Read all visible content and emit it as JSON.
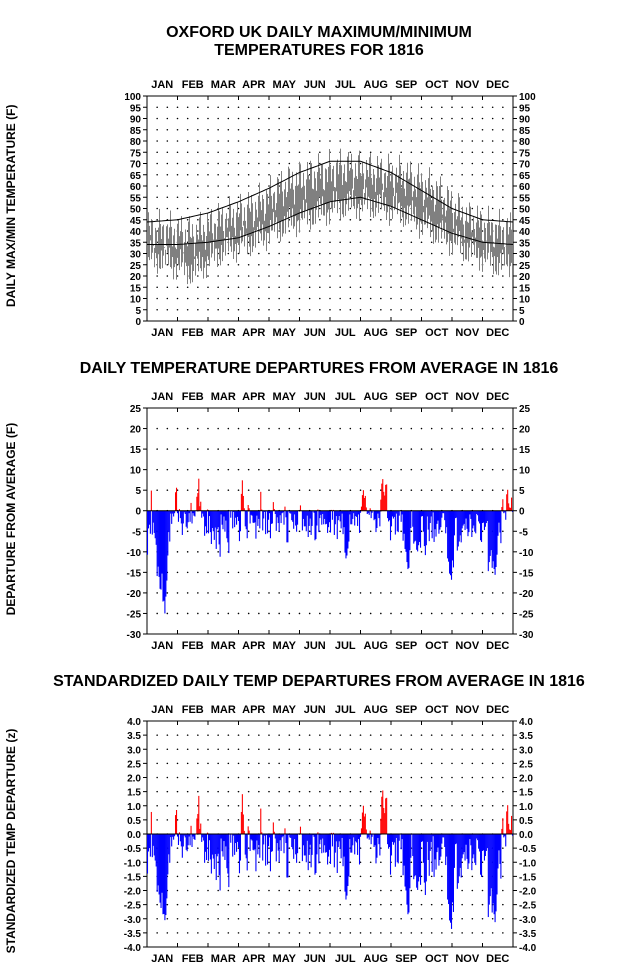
{
  "titles": {
    "chart1_line1": "OXFORD UK DAILY MAXIMUM/MINIMUM",
    "chart1_line2": "TEMPERATURES FOR 1816",
    "chart2": "DAILY TEMPERATURE DEPARTURES FROM AVERAGE IN 1816",
    "chart3": "STANDARDIZED DAILY TEMP DEPARTURES FROM AVERAGE IN 1816"
  },
  "chart_data": [
    {
      "type": "line",
      "title": "OXFORD UK DAILY MAXIMUM/MINIMUM TEMPERATURES FOR 1816",
      "ylabel": "DAILY MAX/MIN TEMPERATURE (F)",
      "months": [
        "JAN",
        "FEB",
        "MAR",
        "APR",
        "MAY",
        "JUN",
        "JUL",
        "AUG",
        "SEP",
        "OCT",
        "NOV",
        "DEC"
      ],
      "ylim": [
        0,
        100
      ],
      "yticks": [
        0,
        5,
        10,
        15,
        20,
        25,
        30,
        35,
        40,
        45,
        50,
        55,
        60,
        65,
        70,
        75,
        80,
        85,
        90,
        95,
        100
      ],
      "grid": true,
      "series": [
        {
          "role": "observed daily range",
          "color": "#808080",
          "x_month_mid": [
            0.5,
            1.5,
            2.5,
            3.5,
            4.5,
            5.5,
            6.5,
            7.5,
            8.5,
            9.5,
            10.5,
            11.5
          ],
          "max_values": [
            40,
            38,
            45,
            50,
            60,
            65,
            68,
            66,
            64,
            57,
            45,
            40
          ],
          "min_values": [
            28,
            22,
            32,
            36,
            43,
            48,
            52,
            52,
            48,
            40,
            32,
            26
          ]
        },
        {
          "role": "average daily maximum",
          "color": "#000000",
          "x": [
            0,
            1,
            2,
            3,
            4,
            5,
            6,
            7,
            8,
            9,
            10,
            11,
            12
          ],
          "values": [
            44,
            45,
            48,
            53,
            59,
            66,
            71,
            71,
            66,
            58,
            50,
            45,
            44
          ]
        },
        {
          "role": "average daily minimum",
          "color": "#000000",
          "x": [
            0,
            1,
            2,
            3,
            4,
            5,
            6,
            7,
            8,
            9,
            10,
            11,
            12
          ],
          "values": [
            34,
            34,
            35,
            37,
            42,
            48,
            53,
            55,
            51,
            45,
            39,
            35,
            34
          ]
        }
      ]
    },
    {
      "type": "bar",
      "title": "DAILY TEMPERATURE DEPARTURES FROM AVERAGE IN 1816",
      "ylabel": "DEPARTURE FROM AVERAGE (F)",
      "months": [
        "JAN",
        "FEB",
        "MAR",
        "APR",
        "MAY",
        "JUN",
        "JUL",
        "AUG",
        "SEP",
        "OCT",
        "NOV",
        "DEC"
      ],
      "ylim": [
        -30,
        25
      ],
      "yticks": [
        25,
        20,
        15,
        10,
        5,
        0,
        -5,
        -10,
        -15,
        -20,
        -25,
        -30
      ],
      "grid": true,
      "positive_color": "#ff0000",
      "negative_color": "#0000ff",
      "values": [
        -10.7,
        -4.3,
        -3.4,
        -5.6,
        4.9,
        -5.8,
        -2.9,
        -5.4,
        -6.7,
        -8.3,
        -15.9,
        -13.6,
        -16.1,
        -19.0,
        -19.2,
        -15.3,
        -22.1,
        -21.9,
        -25.0,
        -20.9,
        -17.0,
        -10.9,
        -5.2,
        -7.5,
        -0.7,
        -3.2,
        -0.7,
        -1.4,
        -0.6,
        4.5,
        5.6,
        -0.6,
        -2.7,
        0.4,
        -1.8,
        -3.1,
        -5.9,
        -3.1,
        -0.4,
        -0.8,
        -3.9,
        -4.3,
        -2.8,
        -0.6,
        -2.7,
        1.9,
        -3.1,
        -0.6,
        -1.2,
        -1.4,
        0.0,
        3.4,
        4.3,
        7.8,
        1.1,
        2.2,
        -1.7,
        -0.7,
        -1.4,
        -6.1,
        -3.8,
        -5.5,
        0.3,
        -5.5,
        -1.3,
        -5.2,
        -8.1,
        -4.2,
        -5.0,
        -7.1,
        -4.1,
        -9.3,
        -4.5,
        -4.0,
        -8.2,
        -11.2,
        -0.9,
        -3.4,
        -4.5,
        -1.4,
        -5.1,
        -2.4,
        -6.7,
        -7.7,
        -10.3,
        -0.1,
        -1.7,
        -0.1,
        -4.3,
        -0.3,
        -4.0,
        -1.7,
        -3.4,
        -1.5,
        -2.5,
        -7.4,
        -5.0,
        4.1,
        7.4,
        3.6,
        0.6,
        -3.8,
        -4.5,
        -6.7,
        1.4,
        0.6,
        -3.1,
        -1.0,
        -1.2,
        -2.9,
        -3.0,
        -2.8,
        -6.8,
        -1.2,
        -3.7,
        -2.0,
        -4.3,
        4.6,
        0.3,
        -4.8,
        -1.9,
        -0.3,
        -5.7,
        -0.2,
        -5.5,
        -2.2,
        -0.6,
        -6.7,
        -3.2,
        -3.1,
        2.1,
        0.4,
        -0.8,
        -4.9,
        -1.6,
        -3.0,
        -5.0,
        -1.1,
        -3.0,
        -0.6,
        -0.4,
        -3.4,
        1.0,
        -1.6,
        -7.7,
        -7.7,
        -0.2,
        -0.6,
        -0.7,
        -2.3,
        -2.7,
        -4.4,
        -0.9,
        -3.6,
        -5.1,
        -3.4,
        0.1,
        0.0,
        1.3,
        -0.1,
        -4.8,
        -2.0,
        -3.8,
        -3.8,
        -5.0,
        -1.2,
        -6.4,
        -3.7,
        -1.9,
        -5.9,
        -3.7,
        -0.2,
        -0.5,
        -7.2,
        -6.9,
        -3.6,
        0.3,
        -5.2,
        -1.8,
        -1.0,
        -3.4,
        -0.8,
        -3.3,
        -2.0,
        -3.3,
        -3.2,
        -5.4,
        -4.0,
        -2.8,
        -5.3,
        0.2,
        -2.2,
        0.2,
        -5.9,
        -3.3,
        -1.3,
        -6.9,
        -2.3,
        -1.3,
        -2.6,
        -4.3,
        -0.7,
        -5.7,
        -4.0,
        -10.2,
        -11.6,
        -10.9,
        -9.2,
        -7.5,
        -0.9,
        -3.3,
        -3.3,
        -2.0,
        -0.6,
        -3.6,
        -1.3,
        -1.5,
        -3.7,
        -0.9,
        -5.4,
        -0.5,
        1.0,
        3.8,
        5.0,
        3.1,
        3.6,
        0.8,
        -0.8,
        -0.6,
        -1.0,
        0.6,
        -1.8,
        -0.5,
        -0.1,
        -2.3,
        -2.0,
        -5.2,
        -4.2,
        -0.7,
        -1.8,
        -3.8,
        2.7,
        6.6,
        7.7,
        4.6,
        3.7,
        6.3,
        6.4,
        -1.8,
        -2.6,
        -2.3,
        -7.2,
        -3.8,
        -1.4,
        -1.9,
        -1.5,
        -5.8,
        -0.7,
        -5.0,
        -5.2,
        -1.2,
        0.0,
        -2.7,
        -0.9,
        -7.3,
        -5.6,
        -9.3,
        -10.0,
        -12.5,
        -14.2,
        -13.9,
        -9.6,
        -4.2,
        -0.1,
        -3.9,
        -8.0,
        -7.5,
        -7.3,
        -9.5,
        -9.9,
        -8.4,
        -7.6,
        -9.0,
        -1.4,
        -1.3,
        -5.1,
        -8.6,
        -10.8,
        -8.4,
        -1.4,
        -4.6,
        -7.4,
        -3.0,
        -1.4,
        -6.7,
        -0.4,
        -7.6,
        -4.5,
        -6.3,
        -3.2,
        -2.4,
        -5.6,
        -4.6,
        -4.0,
        -1.7,
        -0.6,
        -0.6,
        -2.3,
        -5.5,
        -4.0,
        -11.6,
        -12.4,
        -15.3,
        -15.7,
        -16.8,
        -12.1,
        -13.8,
        -6.0,
        -1.8,
        -1.7,
        -9.7,
        -8.7,
        -7.5,
        -6.0,
        -7.7,
        -4.3,
        -3.6,
        -3.2,
        -4.7,
        -1.9,
        -4.4,
        -6.2,
        -5.2,
        -0.9,
        -2.0,
        -6.4,
        -4.3,
        -3.6,
        -5.1,
        -5.5,
        -0.8,
        -1.1,
        -2.6,
        -3.1,
        -7.2,
        -7.6,
        -3.0,
        -2.9,
        -4.7,
        -3.9,
        -3.0,
        -2.5,
        -14.7,
        -12.5,
        -11.0,
        -9.6,
        -13.9,
        -12.3,
        -14.2,
        -15.6,
        -13.7,
        -10.7,
        -6.1,
        -2.9,
        -5.3,
        -7.9,
        0.9,
        2.8,
        -0.6,
        -0.4,
        -2.2,
        4.0,
        5.1,
        1.8,
        0.8,
        0.7,
        3.2,
        -0.3
      ]
    },
    {
      "type": "bar",
      "title": "STANDARDIZED DAILY TEMP DEPARTURES FROM AVERAGE IN 1816",
      "ylabel": "STANDARDIZED TEMP DEPARTURE (z)",
      "months": [
        "JAN",
        "FEB",
        "MAR",
        "APR",
        "MAY",
        "JUN",
        "JUL",
        "AUG",
        "SEP",
        "OCT",
        "NOV",
        "DEC"
      ],
      "ylim": [
        -4.0,
        4.0
      ],
      "yticks": [
        4.0,
        3.5,
        3.0,
        2.5,
        2.0,
        1.5,
        1.0,
        0.5,
        0.0,
        -0.5,
        -1.0,
        -1.5,
        -2.0,
        -2.5,
        -3.0,
        -3.5,
        -4.0
      ],
      "grid": true,
      "positive_color": "#ff0000",
      "negative_color": "#0000ff",
      "values": [
        -1.4,
        -0.62,
        -0.5,
        -0.8,
        0.78,
        -0.82,
        -0.42,
        -0.76,
        -0.94,
        -1.15,
        -2.05,
        -1.82,
        -2.14,
        -2.43,
        -2.62,
        -2.08,
        -2.84,
        -2.83,
        -3.05,
        -2.87,
        -2.28,
        -1.43,
        -0.72,
        -1.02,
        -0.11,
        -0.44,
        -0.1,
        -0.2,
        -0.08,
        0.67,
        0.85,
        -0.09,
        -0.39,
        0.06,
        -0.26,
        -0.44,
        -0.84,
        -0.44,
        -0.06,
        -0.12,
        -0.56,
        -0.61,
        -0.4,
        -0.09,
        -0.4,
        0.29,
        -0.46,
        -0.09,
        -0.18,
        -0.21,
        0.0,
        0.55,
        0.71,
        1.35,
        0.18,
        0.37,
        -0.28,
        -0.12,
        -0.23,
        -1.02,
        -0.63,
        -0.92,
        0.05,
        -0.95,
        -0.22,
        -0.9,
        -1.4,
        -0.73,
        -0.87,
        -1.24,
        -0.71,
        -1.63,
        -0.79,
        -0.7,
        -1.46,
        -2.0,
        -0.16,
        -0.61,
        -0.8,
        -0.25,
        -0.92,
        -0.44,
        -1.21,
        -1.4,
        -1.88,
        -0.02,
        -0.31,
        -0.02,
        -0.8,
        -0.06,
        -0.74,
        -0.32,
        -0.63,
        -0.28,
        -0.47,
        -1.39,
        -0.94,
        0.78,
        1.41,
        0.69,
        0.11,
        -0.73,
        -0.86,
        -1.29,
        0.27,
        0.12,
        -0.6,
        -0.19,
        -0.23,
        -0.56,
        -0.58,
        -0.54,
        -1.32,
        -0.23,
        -0.72,
        -0.39,
        -0.84,
        0.9,
        0.06,
        -0.94,
        -0.37,
        -0.06,
        -1.12,
        -0.04,
        -1.08,
        -0.43,
        -0.12,
        -1.32,
        -0.63,
        -0.61,
        0.41,
        0.08,
        -0.16,
        -0.97,
        -0.32,
        -0.59,
        -0.99,
        -0.22,
        -0.6,
        -0.12,
        -0.08,
        -0.68,
        0.2,
        -0.32,
        -1.54,
        -1.54,
        -0.04,
        -0.12,
        -0.14,
        -0.46,
        -0.54,
        -0.88,
        -0.18,
        -0.72,
        -1.02,
        -0.68,
        0.02,
        0.0,
        0.26,
        -0.02,
        -0.96,
        -0.4,
        -0.76,
        -0.76,
        -1.0,
        -0.24,
        -1.28,
        -0.74,
        -0.38,
        -1.18,
        -0.74,
        -0.04,
        -0.1,
        -1.44,
        -1.38,
        -0.72,
        0.06,
        -1.04,
        -0.36,
        -0.2,
        -0.68,
        -0.16,
        -0.66,
        -0.4,
        -0.66,
        -0.64,
        -1.08,
        -0.8,
        -0.56,
        -1.06,
        0.04,
        -0.44,
        0.04,
        -1.18,
        -0.66,
        -0.26,
        -1.38,
        -0.46,
        -0.26,
        -0.52,
        -0.86,
        -0.14,
        -1.14,
        -0.8,
        -2.04,
        -2.32,
        -2.18,
        -1.84,
        -1.5,
        -0.18,
        -0.66,
        -0.66,
        -0.4,
        -0.12,
        -0.72,
        -0.26,
        -0.3,
        -0.74,
        -0.18,
        -1.08,
        -0.1,
        0.2,
        0.76,
        1.0,
        0.62,
        0.72,
        0.16,
        -0.16,
        -0.12,
        -0.2,
        0.12,
        -0.36,
        -0.1,
        -0.02,
        -0.46,
        -0.4,
        -1.04,
        -0.84,
        -0.14,
        -0.36,
        -0.76,
        0.54,
        1.32,
        1.54,
        0.92,
        0.74,
        1.26,
        1.28,
        -0.36,
        -0.52,
        -0.46,
        -1.44,
        -0.76,
        -0.28,
        -0.38,
        -0.3,
        -1.16,
        -0.14,
        -1.0,
        -1.04,
        -0.24,
        0.0,
        -0.54,
        -0.18,
        -1.46,
        -1.12,
        -1.86,
        -2.0,
        -2.5,
        -2.84,
        -2.78,
        -1.92,
        -0.84,
        -0.02,
        -0.78,
        -1.6,
        -1.5,
        -1.46,
        -1.9,
        -1.98,
        -1.68,
        -1.52,
        -1.8,
        -0.28,
        -0.26,
        -1.02,
        -1.72,
        -2.16,
        -1.68,
        -0.28,
        -0.92,
        -1.48,
        -0.6,
        -0.28,
        -1.34,
        -0.08,
        -1.52,
        -0.9,
        -1.26,
        -0.64,
        -0.48,
        -1.12,
        -0.92,
        -0.8,
        -0.34,
        -0.12,
        -0.12,
        -0.46,
        -1.1,
        -0.8,
        -2.32,
        -2.48,
        -3.06,
        -3.14,
        -3.36,
        -2.42,
        -2.76,
        -1.2,
        -0.36,
        -0.34,
        -1.94,
        -1.74,
        -1.5,
        -1.2,
        -1.54,
        -0.86,
        -0.72,
        -0.64,
        -0.94,
        -0.38,
        -0.88,
        -1.24,
        -1.04,
        -0.18,
        -0.4,
        -1.28,
        -0.86,
        -0.72,
        -1.02,
        -1.1,
        -0.16,
        -0.22,
        -0.52,
        -0.62,
        -1.44,
        -1.52,
        -0.6,
        -0.58,
        -0.94,
        -0.78,
        -0.6,
        -0.5,
        -2.94,
        -2.5,
        -2.2,
        -1.92,
        -2.78,
        -2.46,
        -2.84,
        -3.12,
        -2.74,
        -2.14,
        -1.22,
        -0.58,
        -1.06,
        -1.58,
        0.18,
        0.56,
        -0.12,
        -0.08,
        -0.44,
        0.8,
        1.02,
        0.36,
        0.16,
        0.14,
        0.64,
        -0.06
      ]
    }
  ]
}
